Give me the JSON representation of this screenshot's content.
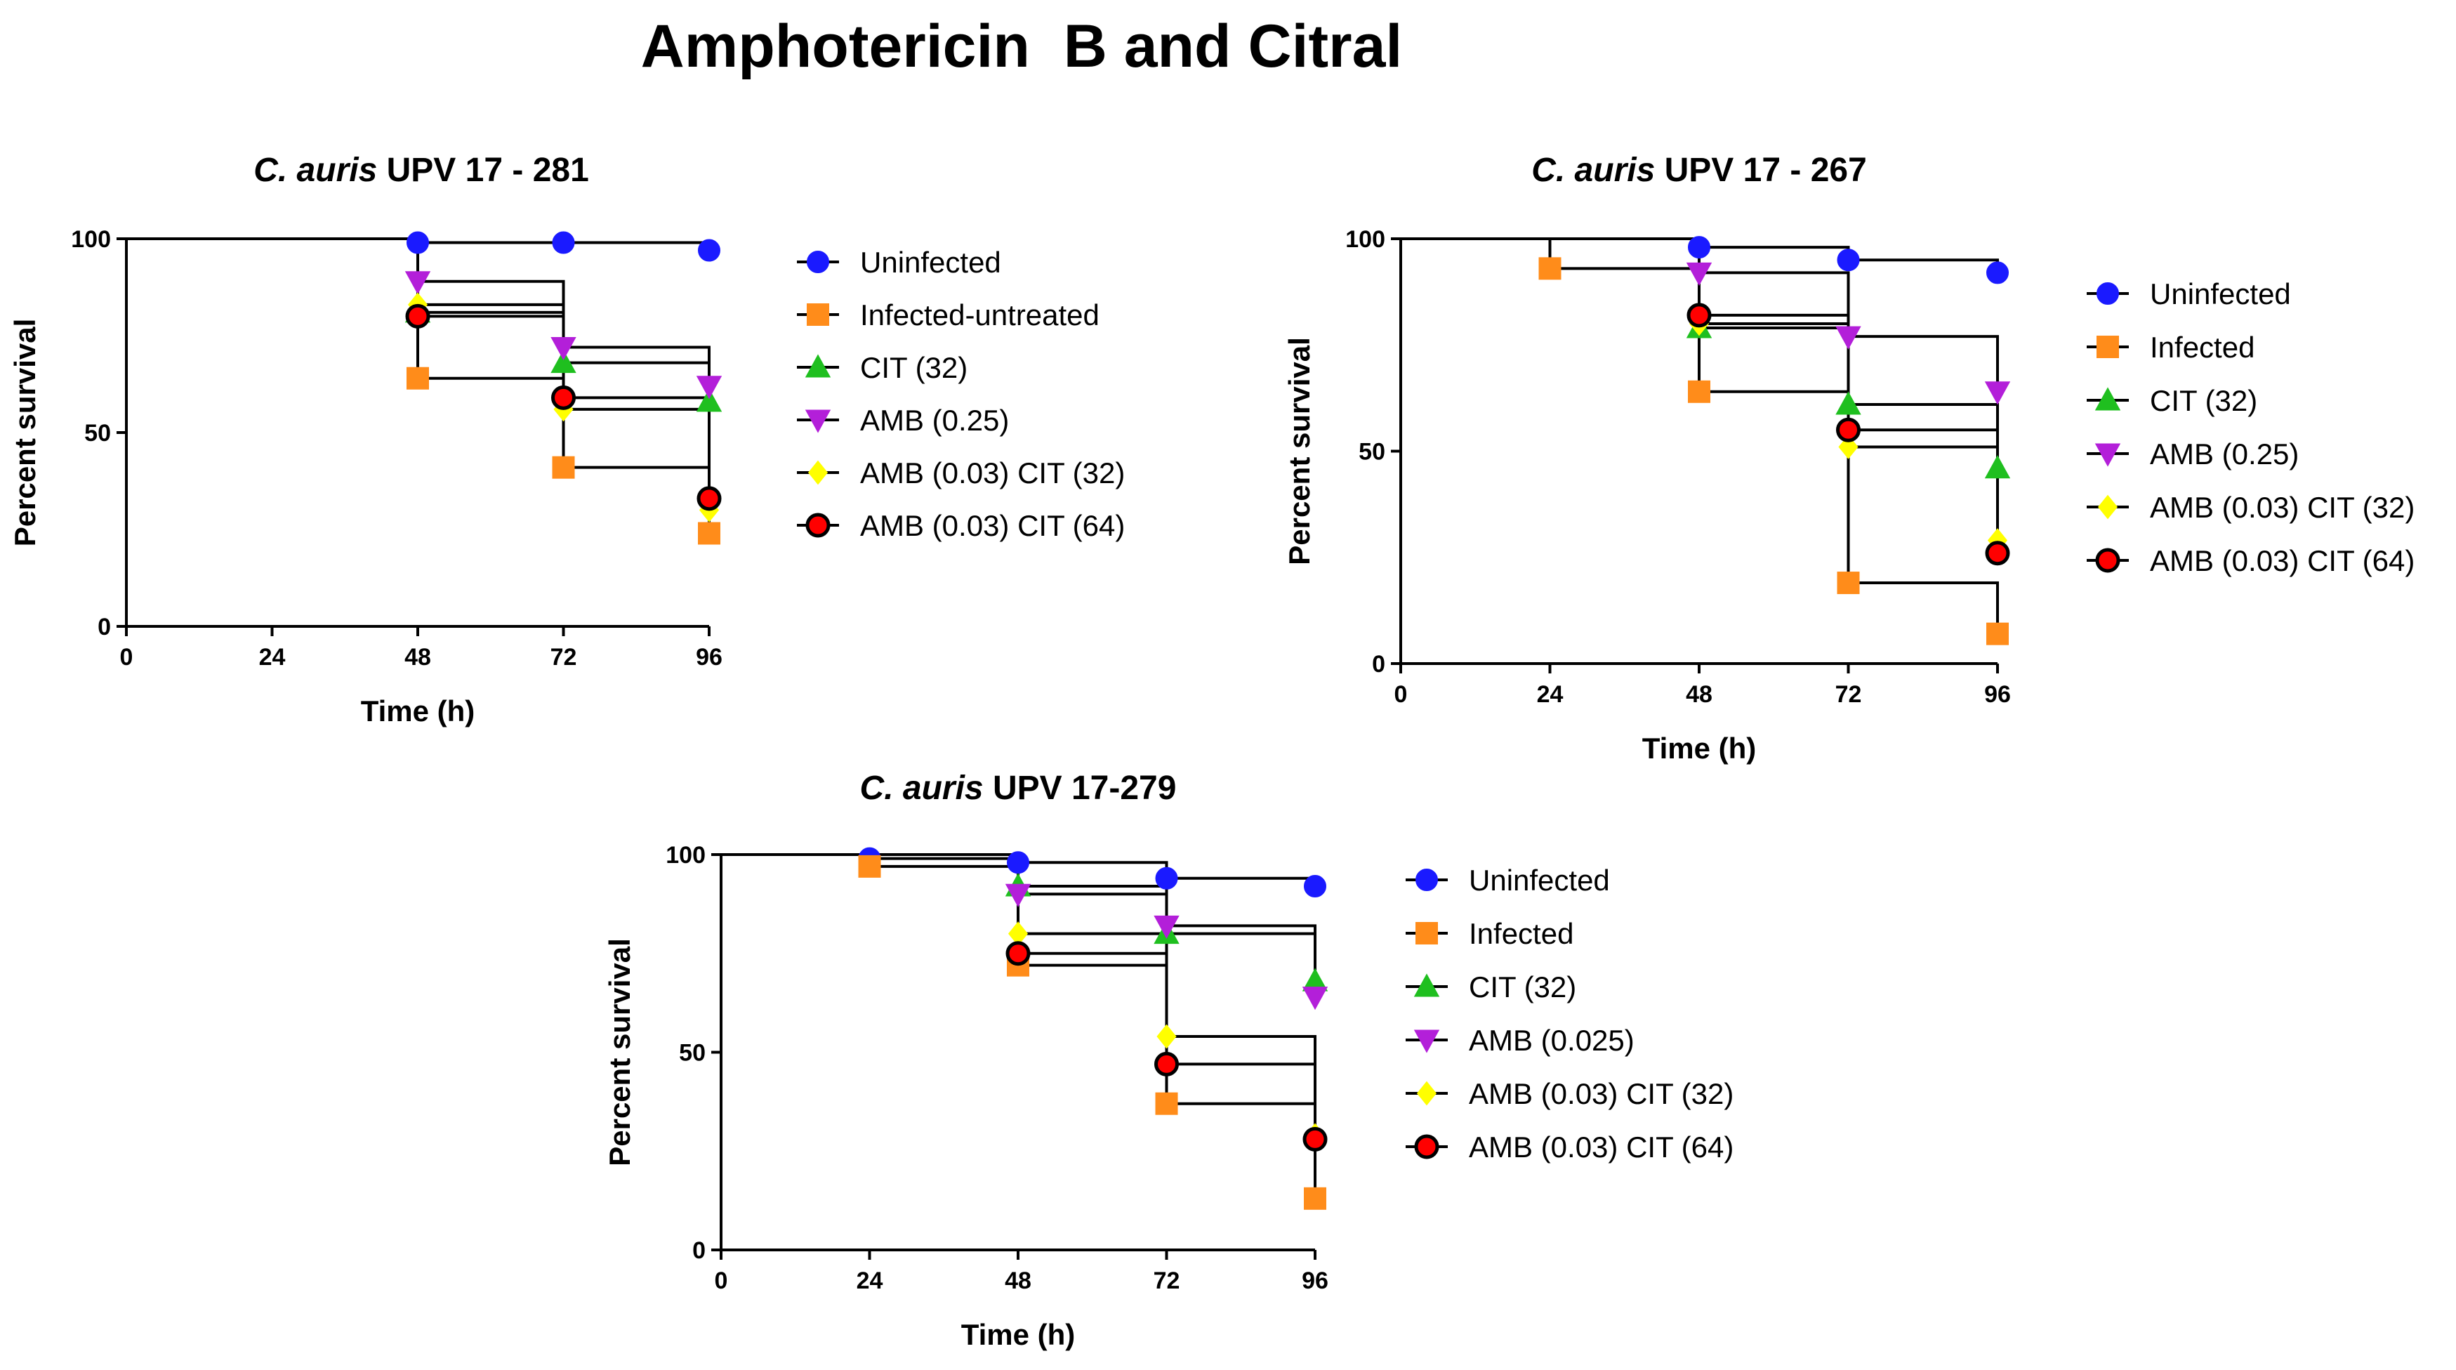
{
  "figure_title": "Amphotericin  B and Citral",
  "colors": {
    "uninfected": "#1a1aff",
    "infected": "#ff8c1a",
    "cit": "#1fbf1f",
    "amb": "#b31fd9",
    "amb_cit32": "#ffff00",
    "amb_cit64": "#ff0000"
  },
  "chart_data": [
    {
      "type": "line",
      "step": true,
      "title_italic": "C. auris",
      "title_rest": " UPV 17 - 281",
      "xlabel": "Time (h)",
      "ylabel": "Percent survival",
      "xlim": [
        0,
        96
      ],
      "ylim": [
        0,
        100
      ],
      "xticks": [
        0,
        24,
        48,
        72,
        96
      ],
      "yticks": [
        0,
        50,
        100
      ],
      "grid": false,
      "legend_position": "right",
      "series": [
        {
          "name": "Uninfected",
          "marker": "circle",
          "color": "#1a1aff",
          "x": [
            0,
            48,
            72,
            96
          ],
          "y": [
            100,
            99,
            99,
            97
          ]
        },
        {
          "name": "Infected-untreated",
          "marker": "square",
          "color": "#ff8c1a",
          "x": [
            0,
            48,
            72,
            96
          ],
          "y": [
            100,
            64,
            41,
            24
          ]
        },
        {
          "name": "CIT (32)",
          "marker": "triangle-up",
          "color": "#1fbf1f",
          "x": [
            0,
            48,
            72,
            96
          ],
          "y": [
            100,
            81,
            68,
            58
          ]
        },
        {
          "name": "AMB (0.25)",
          "marker": "triangle-down",
          "color": "#b31fd9",
          "x": [
            0,
            48,
            72,
            96
          ],
          "y": [
            100,
            89,
            72,
            62
          ]
        },
        {
          "name": "AMB (0.03) CIT (32)",
          "marker": "diamond",
          "color": "#ffff00",
          "x": [
            0,
            48,
            72,
            96
          ],
          "y": [
            100,
            83,
            56,
            30
          ]
        },
        {
          "name": "AMB (0.03) CIT (64)",
          "marker": "circle-outline",
          "color": "#ff0000",
          "x": [
            0,
            48,
            72,
            96
          ],
          "y": [
            100,
            80,
            59,
            33
          ]
        }
      ]
    },
    {
      "type": "line",
      "step": true,
      "title_italic": "C. auris",
      "title_rest": " UPV 17 - 267",
      "xlabel": "Time (h)",
      "ylabel": "Percent survival",
      "xlim": [
        0,
        96
      ],
      "ylim": [
        0,
        100
      ],
      "xticks": [
        0,
        24,
        48,
        72,
        96
      ],
      "yticks": [
        0,
        50,
        100
      ],
      "grid": false,
      "legend_position": "right",
      "series": [
        {
          "name": "Uninfected",
          "marker": "circle",
          "color": "#1a1aff",
          "x": [
            0,
            48,
            72,
            96
          ],
          "y": [
            100,
            98,
            95,
            92
          ]
        },
        {
          "name": "Infected",
          "marker": "square",
          "color": "#ff8c1a",
          "x": [
            0,
            24,
            48,
            72,
            96
          ],
          "y": [
            100,
            93,
            64,
            19,
            7
          ]
        },
        {
          "name": "CIT (32)",
          "marker": "triangle-up",
          "color": "#1fbf1f",
          "x": [
            0,
            48,
            72,
            96
          ],
          "y": [
            100,
            79,
            61,
            46
          ]
        },
        {
          "name": "AMB (0.25)",
          "marker": "triangle-down",
          "color": "#b31fd9",
          "x": [
            0,
            48,
            72,
            96
          ],
          "y": [
            100,
            92,
            77,
            64
          ]
        },
        {
          "name": "AMB (0.03) CIT (32)",
          "marker": "diamond",
          "color": "#ffff00",
          "x": [
            0,
            48,
            72,
            96
          ],
          "y": [
            100,
            80,
            51,
            29
          ]
        },
        {
          "name": "AMB (0.03) CIT (64)",
          "marker": "circle-outline",
          "color": "#ff0000",
          "x": [
            0,
            48,
            72,
            96
          ],
          "y": [
            100,
            82,
            55,
            26
          ]
        }
      ]
    },
    {
      "type": "line",
      "step": true,
      "title_italic": "C. auris",
      "title_rest": " UPV 17-279",
      "xlabel": "Time (h)",
      "ylabel": "Percent survival",
      "xlim": [
        0,
        96
      ],
      "ylim": [
        0,
        100
      ],
      "xticks": [
        0,
        24,
        48,
        72,
        96
      ],
      "yticks": [
        0,
        50,
        100
      ],
      "grid": false,
      "legend_position": "right",
      "series": [
        {
          "name": "Uninfected",
          "marker": "circle",
          "color": "#1a1aff",
          "x": [
            0,
            24,
            48,
            72,
            96
          ],
          "y": [
            100,
            99,
            98,
            94,
            92
          ]
        },
        {
          "name": "Infected",
          "marker": "square",
          "color": "#ff8c1a",
          "x": [
            0,
            24,
            48,
            72,
            96
          ],
          "y": [
            100,
            97,
            72,
            37,
            13
          ]
        },
        {
          "name": "CIT (32)",
          "marker": "triangle-up",
          "color": "#1fbf1f",
          "x": [
            0,
            48,
            72,
            96
          ],
          "y": [
            100,
            92,
            80,
            68
          ]
        },
        {
          "name": "AMB (0.025)",
          "marker": "triangle-down",
          "color": "#b31fd9",
          "x": [
            0,
            48,
            72,
            96
          ],
          "y": [
            100,
            90,
            82,
            64
          ]
        },
        {
          "name": "AMB (0.03) CIT (32)",
          "marker": "diamond",
          "color": "#ffff00",
          "x": [
            0,
            48,
            72,
            96
          ],
          "y": [
            100,
            80,
            54,
            29
          ]
        },
        {
          "name": "AMB (0.03) CIT (64)",
          "marker": "circle-outline",
          "color": "#ff0000",
          "x": [
            0,
            48,
            72,
            96
          ],
          "y": [
            100,
            75,
            47,
            28
          ]
        }
      ]
    }
  ]
}
